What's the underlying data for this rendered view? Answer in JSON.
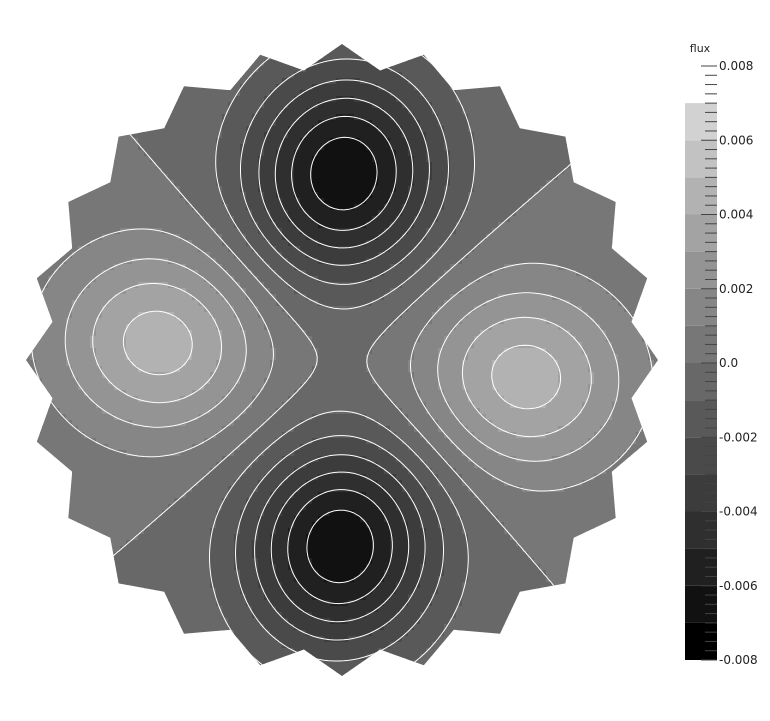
{
  "chart_data": {
    "type": "heatmap",
    "title": "",
    "field": "flux",
    "colorbar": {
      "label": "flux",
      "range": [
        -0.008,
        0.008
      ],
      "levels": [
        -0.008,
        -0.007,
        -0.006,
        -0.005,
        -0.004,
        -0.003,
        -0.002,
        -0.001,
        0.0,
        0.001,
        0.002,
        0.003,
        0.004,
        0.005,
        0.006,
        0.007
      ],
      "tick_values": [
        0.008,
        0.006,
        0.004,
        0.002,
        0.0,
        -0.002,
        -0.004,
        -0.006,
        -0.008
      ],
      "tick_labels": [
        "0.008",
        "0.006",
        "0.004",
        "0.002",
        "0.0",
        "-0.002",
        "-0.004",
        "-0.006",
        "-0.008"
      ],
      "colors": [
        "#000000",
        "#111111",
        "#202020",
        "#2f2f2f",
        "#3c3c3c",
        "#4a4a4a",
        "#595959",
        "#686868",
        "#777777",
        "#868686",
        "#949494",
        "#a3a3a3",
        "#b2b2b2",
        "#c2c2c2",
        "#d2d2d2",
        "#e6e6e6"
      ]
    },
    "pattern": {
      "description_free_layout": false,
      "lobes": [
        {
          "quadrant": "left",
          "peak_value": 0.0045
        },
        {
          "quadrant": "right",
          "peak_value": 0.0045
        },
        {
          "quadrant": "top",
          "peak_value": -0.0068
        },
        {
          "quadrant": "bottom",
          "peak_value": -0.0068
        }
      ],
      "background_value": 0.0,
      "contour_color": "#ffffff"
    },
    "grid": false,
    "legend_position": "right"
  }
}
